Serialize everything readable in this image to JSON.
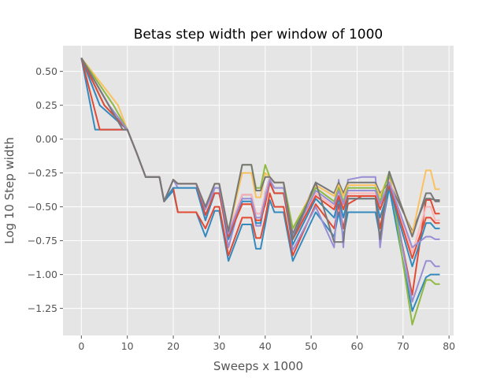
{
  "chart_data": {
    "type": "line",
    "title": "Betas step width per window of 1000",
    "xlabel": "Sweeps x 1000",
    "ylabel": "Log 10 Step width",
    "xlim": [
      -4,
      81
    ],
    "ylim": [
      -1.45,
      0.69
    ],
    "xticks": [
      0,
      10,
      20,
      30,
      40,
      50,
      60,
      70,
      80
    ],
    "xtick_labels": [
      "0",
      "10",
      "20",
      "30",
      "40",
      "50",
      "60",
      "70",
      "80"
    ],
    "yticks": [
      0.5,
      0.25,
      0.0,
      -0.25,
      -0.5,
      -0.75,
      -1.0,
      -1.25
    ],
    "ytick_labels": [
      "0.50",
      "0.25",
      "0.00",
      "−0.25",
      "−0.50",
      "−0.75",
      "−1.00",
      "−1.25"
    ],
    "grid": true,
    "style": "ggplot",
    "legend": "none",
    "series_colors": [
      "#348abd",
      "#e24a33",
      "#988ed5",
      "#777777",
      "#fbc15e",
      "#8eba42",
      "#ffb5b8",
      "#348abd",
      "#e24a33",
      "#988ed5",
      "#777777"
    ],
    "series": [
      {
        "x": [
          0,
          3,
          10,
          12,
          14,
          17,
          18,
          20,
          21,
          25,
          27,
          29,
          30,
          32,
          35,
          37,
          38,
          39,
          40,
          41,
          42,
          44,
          46,
          51,
          55,
          56,
          57,
          58,
          61,
          64,
          65,
          67,
          72,
          75,
          76,
          77,
          78
        ],
        "values": [
          0.6,
          0.07,
          0.07,
          -0.1,
          -0.28,
          -0.28,
          -0.46,
          -0.38,
          -0.54,
          -0.54,
          -0.72,
          -0.53,
          -0.53,
          -0.9,
          -0.63,
          -0.63,
          -0.81,
          -0.81,
          -0.63,
          -0.45,
          -0.54,
          -0.54,
          -0.9,
          -0.54,
          -0.72,
          -0.54,
          -0.72,
          -0.54,
          -0.54,
          -0.54,
          -0.72,
          -0.36,
          -1.27,
          -1.02,
          -1.0,
          -1.0,
          -1.0
        ]
      },
      {
        "x": [
          0,
          4,
          10,
          12,
          14,
          17,
          18,
          20,
          21,
          25,
          27,
          29,
          30,
          32,
          35,
          37,
          38,
          39,
          40,
          41,
          42,
          44,
          46,
          51,
          55,
          56,
          57,
          58,
          61,
          64,
          65,
          67,
          72,
          75,
          76,
          77,
          78
        ],
        "values": [
          0.6,
          0.07,
          0.07,
          -0.1,
          -0.28,
          -0.28,
          -0.46,
          -0.36,
          -0.54,
          -0.54,
          -0.66,
          -0.5,
          -0.5,
          -0.86,
          -0.58,
          -0.58,
          -0.73,
          -0.73,
          -0.58,
          -0.4,
          -0.5,
          -0.5,
          -0.86,
          -0.48,
          -0.66,
          -0.48,
          -0.66,
          -0.48,
          -0.42,
          -0.42,
          -0.66,
          -0.3,
          -1.15,
          -0.45,
          -0.45,
          -0.55,
          -0.55
        ]
      },
      {
        "x": [
          0,
          4,
          10,
          12,
          14,
          17,
          18,
          20,
          21,
          25,
          27,
          29,
          30,
          32,
          35,
          37,
          38,
          39,
          40,
          41,
          42,
          44,
          46,
          51,
          55,
          56,
          57,
          58,
          61,
          64,
          65,
          67,
          72,
          75,
          76,
          77,
          78
        ],
        "values": [
          0.6,
          0.25,
          0.07,
          -0.1,
          -0.28,
          -0.28,
          -0.46,
          -0.3,
          -0.36,
          -0.36,
          -0.6,
          -0.36,
          -0.36,
          -0.8,
          -0.41,
          -0.41,
          -0.64,
          -0.64,
          -0.4,
          -0.28,
          -0.32,
          -0.32,
          -0.82,
          -0.5,
          -0.8,
          -0.3,
          -0.8,
          -0.3,
          -0.28,
          -0.28,
          -0.8,
          -0.26,
          -1.2,
          -0.9,
          -0.9,
          -0.94,
          -0.94
        ]
      },
      {
        "x": [
          0,
          5,
          10,
          12,
          14,
          17,
          18,
          20,
          21,
          25,
          27,
          29,
          30,
          32,
          35,
          37,
          38,
          39,
          40,
          41,
          42,
          44,
          46,
          51,
          55,
          56,
          57,
          58,
          61,
          64,
          65,
          67,
          72,
          75,
          76,
          77,
          78
        ],
        "values": [
          0.6,
          0.25,
          0.07,
          -0.1,
          -0.28,
          -0.28,
          -0.46,
          -0.3,
          -0.33,
          -0.33,
          -0.5,
          -0.33,
          -0.33,
          -0.68,
          -0.41,
          -0.41,
          -0.55,
          -0.55,
          -0.41,
          -0.28,
          -0.32,
          -0.32,
          -0.7,
          -0.32,
          -0.4,
          -0.32,
          -0.4,
          -0.32,
          -0.32,
          -0.32,
          -0.4,
          -0.32,
          -0.68,
          -0.44,
          -0.44,
          -0.45,
          -0.45
        ]
      },
      {
        "x": [
          0,
          8,
          10,
          12,
          14,
          17,
          18,
          20,
          21,
          25,
          27,
          29,
          30,
          32,
          35,
          37,
          38,
          39,
          40,
          41,
          42,
          44,
          46,
          51,
          55,
          56,
          57,
          58,
          61,
          64,
          65,
          67,
          72,
          75,
          76,
          77,
          78
        ],
        "values": [
          0.6,
          0.25,
          0.07,
          -0.1,
          -0.28,
          -0.28,
          -0.46,
          -0.3,
          -0.33,
          -0.33,
          -0.5,
          -0.33,
          -0.33,
          -0.68,
          -0.25,
          -0.25,
          -0.43,
          -0.43,
          -0.25,
          -0.28,
          -0.32,
          -0.32,
          -0.66,
          -0.34,
          -0.42,
          -0.34,
          -0.42,
          -0.34,
          -0.34,
          -0.34,
          -0.42,
          -0.26,
          -0.7,
          -0.23,
          -0.23,
          -0.37,
          -0.37
        ]
      },
      {
        "x": [
          0,
          7,
          10,
          12,
          14,
          17,
          18,
          20,
          21,
          25,
          27,
          29,
          30,
          32,
          35,
          37,
          38,
          39,
          40,
          41,
          42,
          44,
          46,
          51,
          55,
          56,
          57,
          58,
          61,
          64,
          65,
          67,
          72,
          75,
          76,
          77,
          78
        ],
        "values": [
          0.6,
          0.25,
          0.07,
          -0.1,
          -0.28,
          -0.28,
          -0.46,
          -0.3,
          -0.33,
          -0.33,
          -0.5,
          -0.33,
          -0.33,
          -0.68,
          -0.19,
          -0.19,
          -0.36,
          -0.36,
          -0.19,
          -0.28,
          -0.32,
          -0.32,
          -0.66,
          -0.36,
          -0.46,
          -0.36,
          -0.46,
          -0.36,
          -0.36,
          -0.36,
          -0.46,
          -0.24,
          -1.37,
          -1.04,
          -1.04,
          -1.07,
          -1.07
        ]
      },
      {
        "x": [
          0,
          6,
          10,
          12,
          14,
          17,
          18,
          20,
          21,
          25,
          27,
          29,
          30,
          32,
          35,
          37,
          38,
          39,
          40,
          41,
          42,
          44,
          46,
          51,
          55,
          56,
          57,
          58,
          61,
          64,
          65,
          67,
          72,
          75,
          76,
          77,
          78
        ],
        "values": [
          0.6,
          0.25,
          0.07,
          -0.1,
          -0.28,
          -0.28,
          -0.46,
          -0.3,
          -0.33,
          -0.33,
          -0.5,
          -0.33,
          -0.33,
          -0.68,
          -0.41,
          -0.41,
          -0.55,
          -0.55,
          -0.41,
          -0.28,
          -0.32,
          -0.32,
          -0.78,
          -0.4,
          -0.5,
          -0.4,
          -0.5,
          -0.4,
          -0.4,
          -0.4,
          -0.5,
          -0.3,
          -0.84,
          -0.5,
          -0.5,
          -0.6,
          -0.6
        ]
      },
      {
        "x": [
          0,
          4,
          10,
          12,
          14,
          17,
          18,
          20,
          21,
          25,
          27,
          29,
          30,
          32,
          35,
          37,
          38,
          39,
          40,
          41,
          42,
          44,
          46,
          51,
          55,
          56,
          57,
          58,
          61,
          64,
          65,
          67,
          72,
          75,
          76,
          77,
          78
        ],
        "values": [
          0.6,
          0.25,
          0.07,
          -0.1,
          -0.28,
          -0.28,
          -0.46,
          -0.36,
          -0.36,
          -0.36,
          -0.6,
          -0.4,
          -0.4,
          -0.74,
          -0.46,
          -0.46,
          -0.62,
          -0.62,
          -0.46,
          -0.32,
          -0.4,
          -0.4,
          -0.78,
          -0.44,
          -0.58,
          -0.44,
          -0.58,
          -0.44,
          -0.44,
          -0.44,
          -0.58,
          -0.36,
          -0.94,
          -0.62,
          -0.62,
          -0.66,
          -0.66
        ]
      },
      {
        "x": [
          0,
          5,
          10,
          12,
          14,
          17,
          18,
          20,
          21,
          25,
          27,
          29,
          30,
          32,
          35,
          37,
          38,
          39,
          40,
          41,
          42,
          44,
          46,
          51,
          55,
          56,
          57,
          58,
          61,
          64,
          65,
          67,
          72,
          75,
          76,
          77,
          78
        ],
        "values": [
          0.6,
          0.25,
          0.07,
          -0.1,
          -0.28,
          -0.28,
          -0.46,
          -0.3,
          -0.33,
          -0.33,
          -0.56,
          -0.4,
          -0.4,
          -0.72,
          -0.48,
          -0.48,
          -0.6,
          -0.6,
          -0.48,
          -0.32,
          -0.4,
          -0.4,
          -0.74,
          -0.42,
          -0.52,
          -0.42,
          -0.52,
          -0.42,
          -0.42,
          -0.42,
          -0.52,
          -0.34,
          -0.88,
          -0.58,
          -0.58,
          -0.62,
          -0.62
        ]
      },
      {
        "x": [
          0,
          6,
          10,
          12,
          14,
          17,
          18,
          20,
          21,
          25,
          27,
          29,
          30,
          32,
          35,
          37,
          38,
          39,
          40,
          41,
          42,
          44,
          46,
          51,
          55,
          56,
          57,
          58,
          61,
          64,
          65,
          67,
          72,
          75,
          76,
          77,
          78
        ],
        "values": [
          0.6,
          0.25,
          0.07,
          -0.1,
          -0.28,
          -0.28,
          -0.46,
          -0.3,
          -0.33,
          -0.33,
          -0.52,
          -0.36,
          -0.36,
          -0.7,
          -0.44,
          -0.44,
          -0.58,
          -0.58,
          -0.44,
          -0.3,
          -0.36,
          -0.36,
          -0.72,
          -0.38,
          -0.48,
          -0.38,
          -0.48,
          -0.38,
          -0.38,
          -0.38,
          -0.48,
          -0.32,
          -0.8,
          -0.72,
          -0.72,
          -0.74,
          -0.74
        ]
      },
      {
        "x": [
          0,
          9,
          10,
          12,
          14,
          17,
          18,
          20,
          21,
          25,
          27,
          29,
          30,
          32,
          35,
          37,
          38,
          39,
          40,
          41,
          42,
          44,
          46,
          51,
          55,
          56,
          57,
          58,
          61,
          64,
          65,
          67,
          72,
          75,
          76,
          77,
          78
        ],
        "values": [
          0.6,
          0.07,
          0.07,
          -0.1,
          -0.28,
          -0.28,
          -0.46,
          -0.3,
          -0.33,
          -0.33,
          -0.5,
          -0.33,
          -0.33,
          -0.68,
          -0.19,
          -0.19,
          -0.38,
          -0.38,
          -0.28,
          -0.28,
          -0.32,
          -0.32,
          -0.74,
          -0.32,
          -0.76,
          -0.76,
          -0.76,
          -0.44,
          -0.44,
          -0.44,
          -0.74,
          -0.24,
          -0.72,
          -0.4,
          -0.4,
          -0.46,
          -0.46
        ]
      }
    ]
  }
}
